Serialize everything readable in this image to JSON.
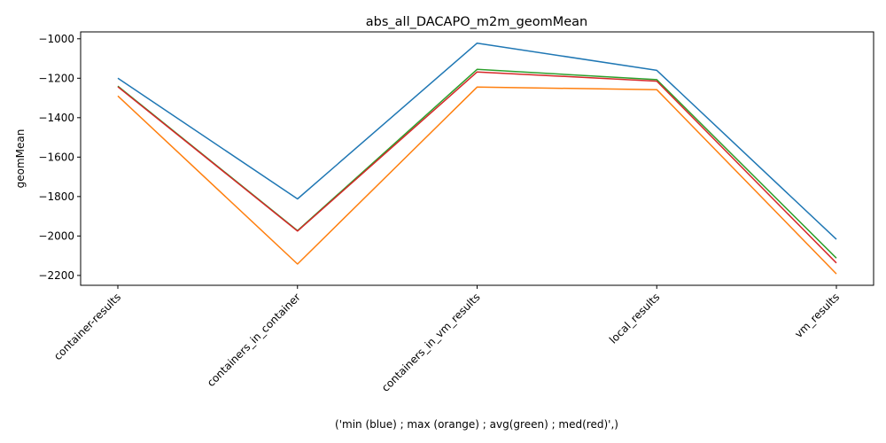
{
  "chart_data": {
    "type": "line",
    "title": "abs_all_DACAPO_m2m_geomMean",
    "xlabel": "('min (blue) ; max (orange) ; avg(green) ; med(red)',)",
    "ylabel": "geomMean",
    "categories": [
      "container-results",
      "containers_in_container",
      "containers_in_vm_results",
      "local_results",
      "vm_results"
    ],
    "ylim": [
      -2250,
      -965
    ],
    "yticks": [
      -2200,
      -2000,
      -1800,
      -1600,
      -1400,
      -1200,
      -1000
    ],
    "ytick_labels": [
      "−2200",
      "−2000",
      "−1800",
      "−1600",
      "−1400",
      "−1200",
      "−1000"
    ],
    "grid": false,
    "series": [
      {
        "color": "#1f77b4",
        "values": [
          -1200,
          -1812,
          -1022,
          -1160,
          -2017
        ]
      },
      {
        "color": "#ff7f0e",
        "values": [
          -1290,
          -2142,
          -1245,
          -1258,
          -2192
        ]
      },
      {
        "color": "#2ca02c",
        "values": [
          -1240,
          -1973,
          -1155,
          -1207,
          -2112
        ]
      },
      {
        "color": "#d62728",
        "values": [
          -1243,
          -1975,
          -1168,
          -1215,
          -2137
        ]
      }
    ]
  }
}
